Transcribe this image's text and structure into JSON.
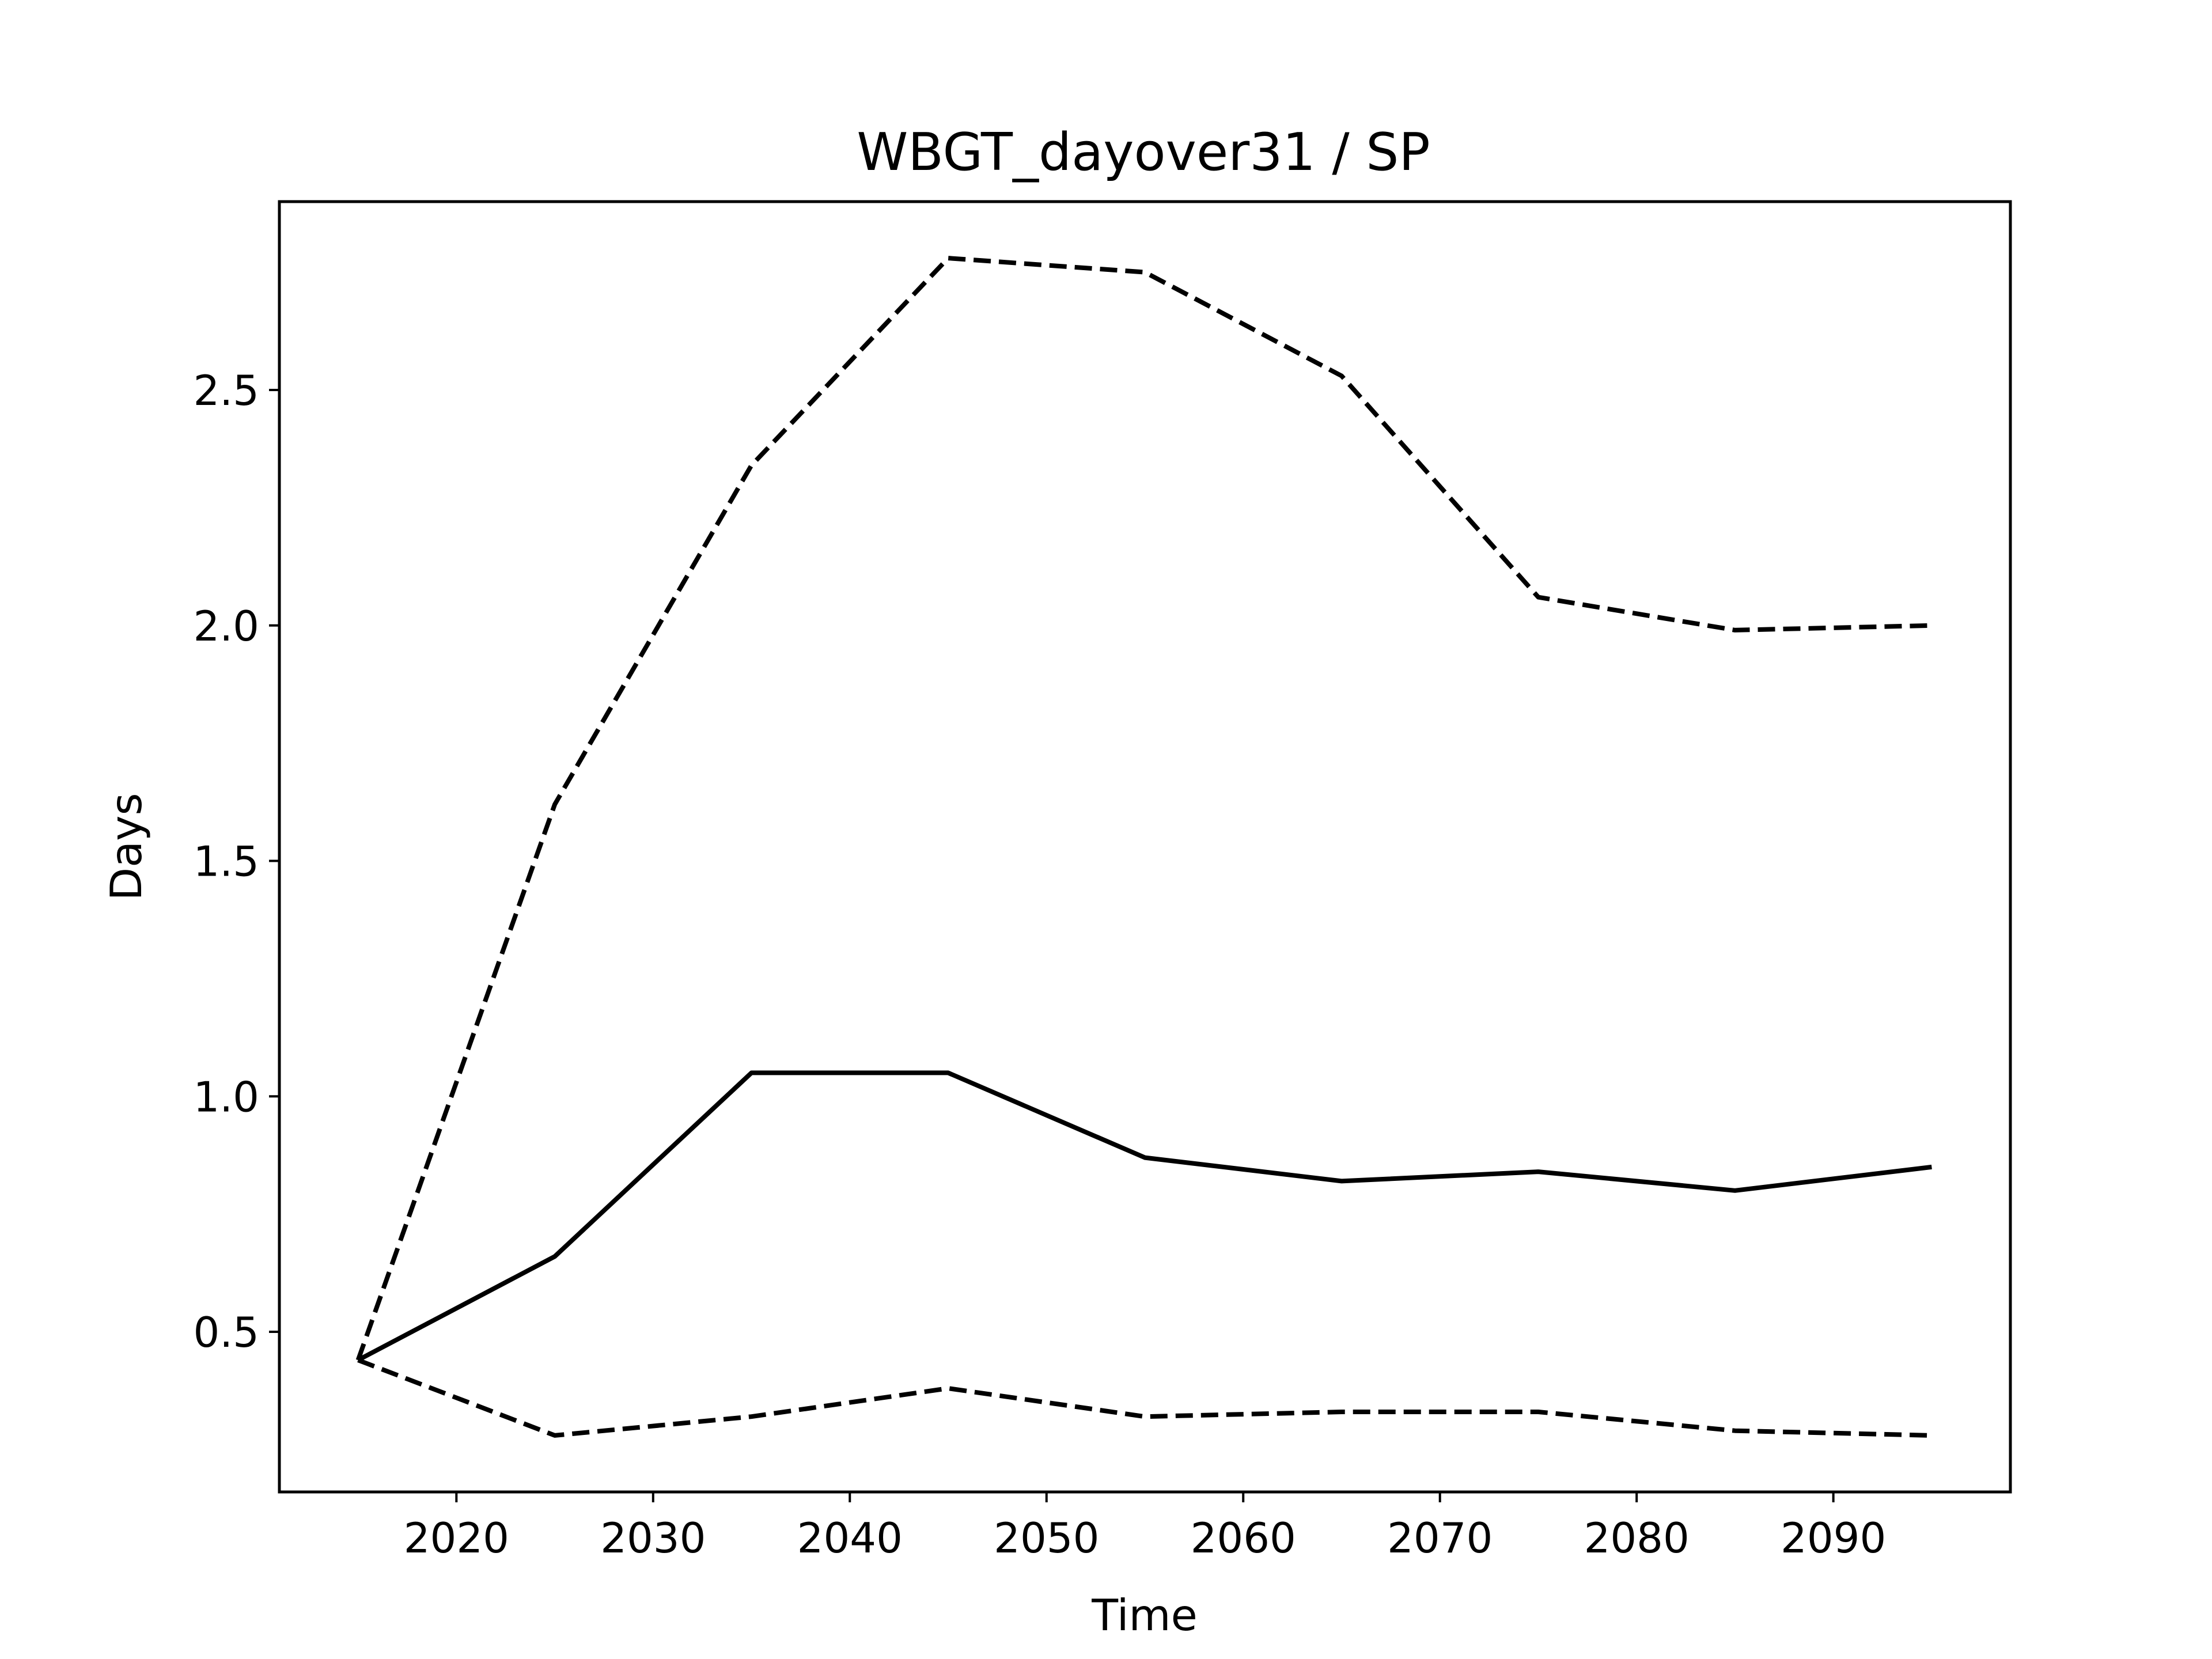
{
  "chart_data": {
    "type": "line",
    "title": "WBGT_dayover31 / SP",
    "xlabel": "Time",
    "ylabel": "Days",
    "xlim": [
      2011,
      2099
    ],
    "ylim": [
      0.16,
      2.9
    ],
    "xticks": [
      2020,
      2030,
      2040,
      2050,
      2060,
      2070,
      2080,
      2090
    ],
    "yticks": [
      0.5,
      1.0,
      1.5,
      2.0,
      2.5
    ],
    "xtick_labels": [
      "2020",
      "2030",
      "2040",
      "2050",
      "2060",
      "2070",
      "2080",
      "2090"
    ],
    "ytick_labels": [
      "0.5",
      "1.0",
      "1.5",
      "2.0",
      "2.5"
    ],
    "grid": false,
    "x": [
      2015,
      2025,
      2035,
      2045,
      2055,
      2065,
      2075,
      2085,
      2095
    ],
    "series": [
      {
        "style": "dashed",
        "color": "#000000",
        "values": [
          0.44,
          1.62,
          2.34,
          2.78,
          2.75,
          2.53,
          2.06,
          1.99,
          2.0
        ]
      },
      {
        "style": "solid",
        "color": "#000000",
        "values": [
          0.44,
          0.66,
          1.05,
          1.05,
          0.87,
          0.82,
          0.84,
          0.8,
          0.85
        ]
      },
      {
        "style": "dashed",
        "color": "#000000",
        "values": [
          0.44,
          0.28,
          0.32,
          0.38,
          0.32,
          0.33,
          0.33,
          0.29,
          0.28
        ]
      }
    ]
  }
}
